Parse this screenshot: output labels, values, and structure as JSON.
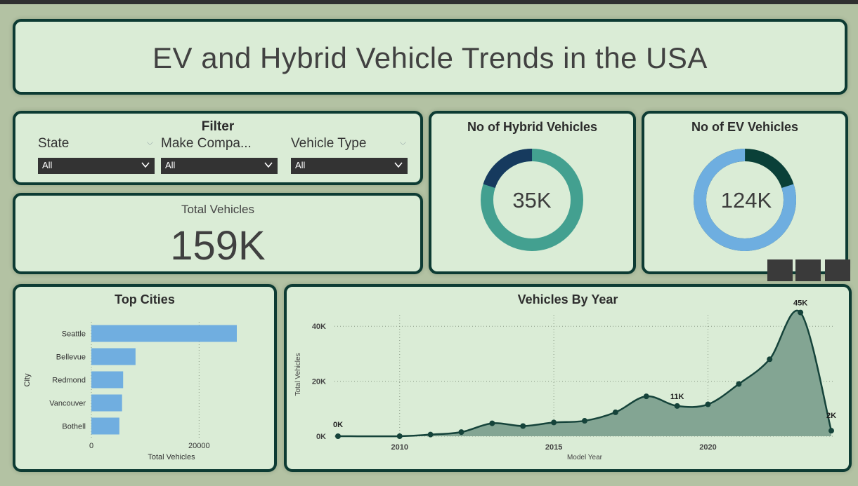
{
  "title": "EV and Hybrid Vehicle Trends in the USA",
  "filter": {
    "title": "Filter",
    "slicers": [
      {
        "label": "State",
        "value": "All"
      },
      {
        "label": "Make Compa...",
        "value": "All"
      },
      {
        "label": "Vehicle Type",
        "value": "All"
      }
    ]
  },
  "total": {
    "label": "Total Vehicles",
    "value": "159K"
  },
  "hybrid": {
    "title": "No of Hybrid Vehicles",
    "value": "35K",
    "share": 0.2,
    "colors": [
      "#43a090",
      "#163a5e"
    ]
  },
  "ev": {
    "title": "No of EV Vehicles",
    "value": "124K",
    "share": 0.8,
    "colors": [
      "#0a4038",
      "#6eaee0"
    ]
  },
  "colors": {
    "card_bg": "#daecd6",
    "border": "#0d3b33",
    "page_bg": "#b3c2a3",
    "bar": "#70aee0",
    "area": "#83a593",
    "line": "#15433a"
  },
  "chart_data": [
    {
      "type": "bar",
      "title": "Top Cities",
      "categories": [
        "Seattle",
        "Bellevue",
        "Redmond",
        "Vancouver",
        "Bothell"
      ],
      "values": [
        27000,
        8200,
        5900,
        5700,
        5200
      ],
      "xlabel": "Total Vehicles",
      "ylabel": "City",
      "xticks": [
        "0",
        "20000"
      ],
      "xlim": [
        0,
        30000
      ],
      "orientation": "horizontal",
      "grid": true
    },
    {
      "type": "area",
      "title": "Vehicles By Year",
      "xlabel": "Model Year",
      "ylabel": "Total Vehicles",
      "x": [
        2008,
        2010,
        2011,
        2012,
        2013,
        2014,
        2015,
        2016,
        2017,
        2018,
        2019,
        2020,
        2021,
        2022,
        2023,
        2024
      ],
      "y": [
        0,
        0,
        600,
        1500,
        4700,
        3700,
        5000,
        5600,
        8700,
        14500,
        11000,
        11600,
        19000,
        28000,
        45000,
        2000
      ],
      "xticks": [
        "2010",
        "2015",
        "2020"
      ],
      "yticks": [
        "0K",
        "20K",
        "40K"
      ],
      "xlim": [
        2008,
        2024
      ],
      "ylim": [
        0,
        50000
      ],
      "data_labels": [
        {
          "x": 2008,
          "label": "0K"
        },
        {
          "x": 2019,
          "label": "11K"
        },
        {
          "x": 2023,
          "label": "45K"
        },
        {
          "x": 2024,
          "label": "2K"
        }
      ],
      "grid": true
    }
  ]
}
